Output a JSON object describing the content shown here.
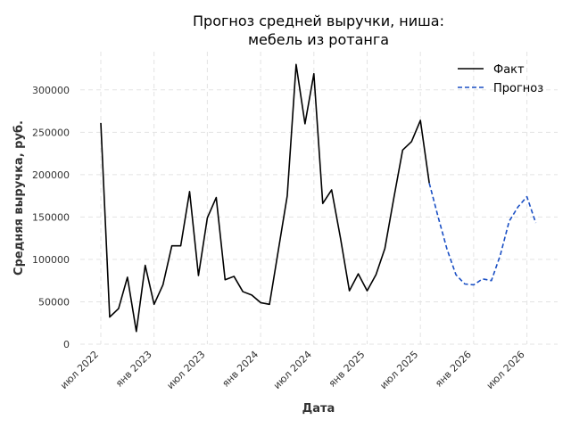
{
  "chart_data": {
    "type": "line",
    "title_line1": "Прогноз средней выручки, ниша:",
    "title_line2": "мебель из ротанга",
    "xlabel": "Дата",
    "ylabel": "Средняя выручка, руб.",
    "ylim": [
      0,
      345000
    ],
    "yticks": [
      0,
      50000,
      100000,
      150000,
      200000,
      250000,
      300000
    ],
    "ytick_labels": [
      "0",
      "50000",
      "100000",
      "150000",
      "200000",
      "250000",
      "300000"
    ],
    "xtick_labels": [
      "июл 2022",
      "янв 2023",
      "июл 2023",
      "янв 2024",
      "июл 2024",
      "янв 2025",
      "июл 2025",
      "янв 2026",
      "июл 2026"
    ],
    "grid": true,
    "legend_position": "top-right",
    "series": [
      {
        "name": "Факт",
        "color": "#000000",
        "style": "solid",
        "values": [
          261000,
          32000,
          42000,
          79000,
          15000,
          93000,
          47000,
          70000,
          116000,
          116000,
          180000,
          81000,
          149000,
          173000,
          76000,
          80000,
          62000,
          58000,
          49000,
          47000,
          111000,
          175000,
          330000,
          260000,
          319000,
          166000,
          182000,
          125000,
          63000,
          83000,
          63000,
          82000,
          113000,
          172000,
          229000,
          239000,
          264000,
          190000
        ]
      },
      {
        "name": "Прогноз",
        "color": "#1a4fc4",
        "style": "dashed",
        "values": [
          190000,
          150000,
          112000,
          82000,
          71000,
          70000,
          77000,
          75000,
          105000,
          145000,
          162000,
          174000,
          143000
        ]
      }
    ]
  }
}
